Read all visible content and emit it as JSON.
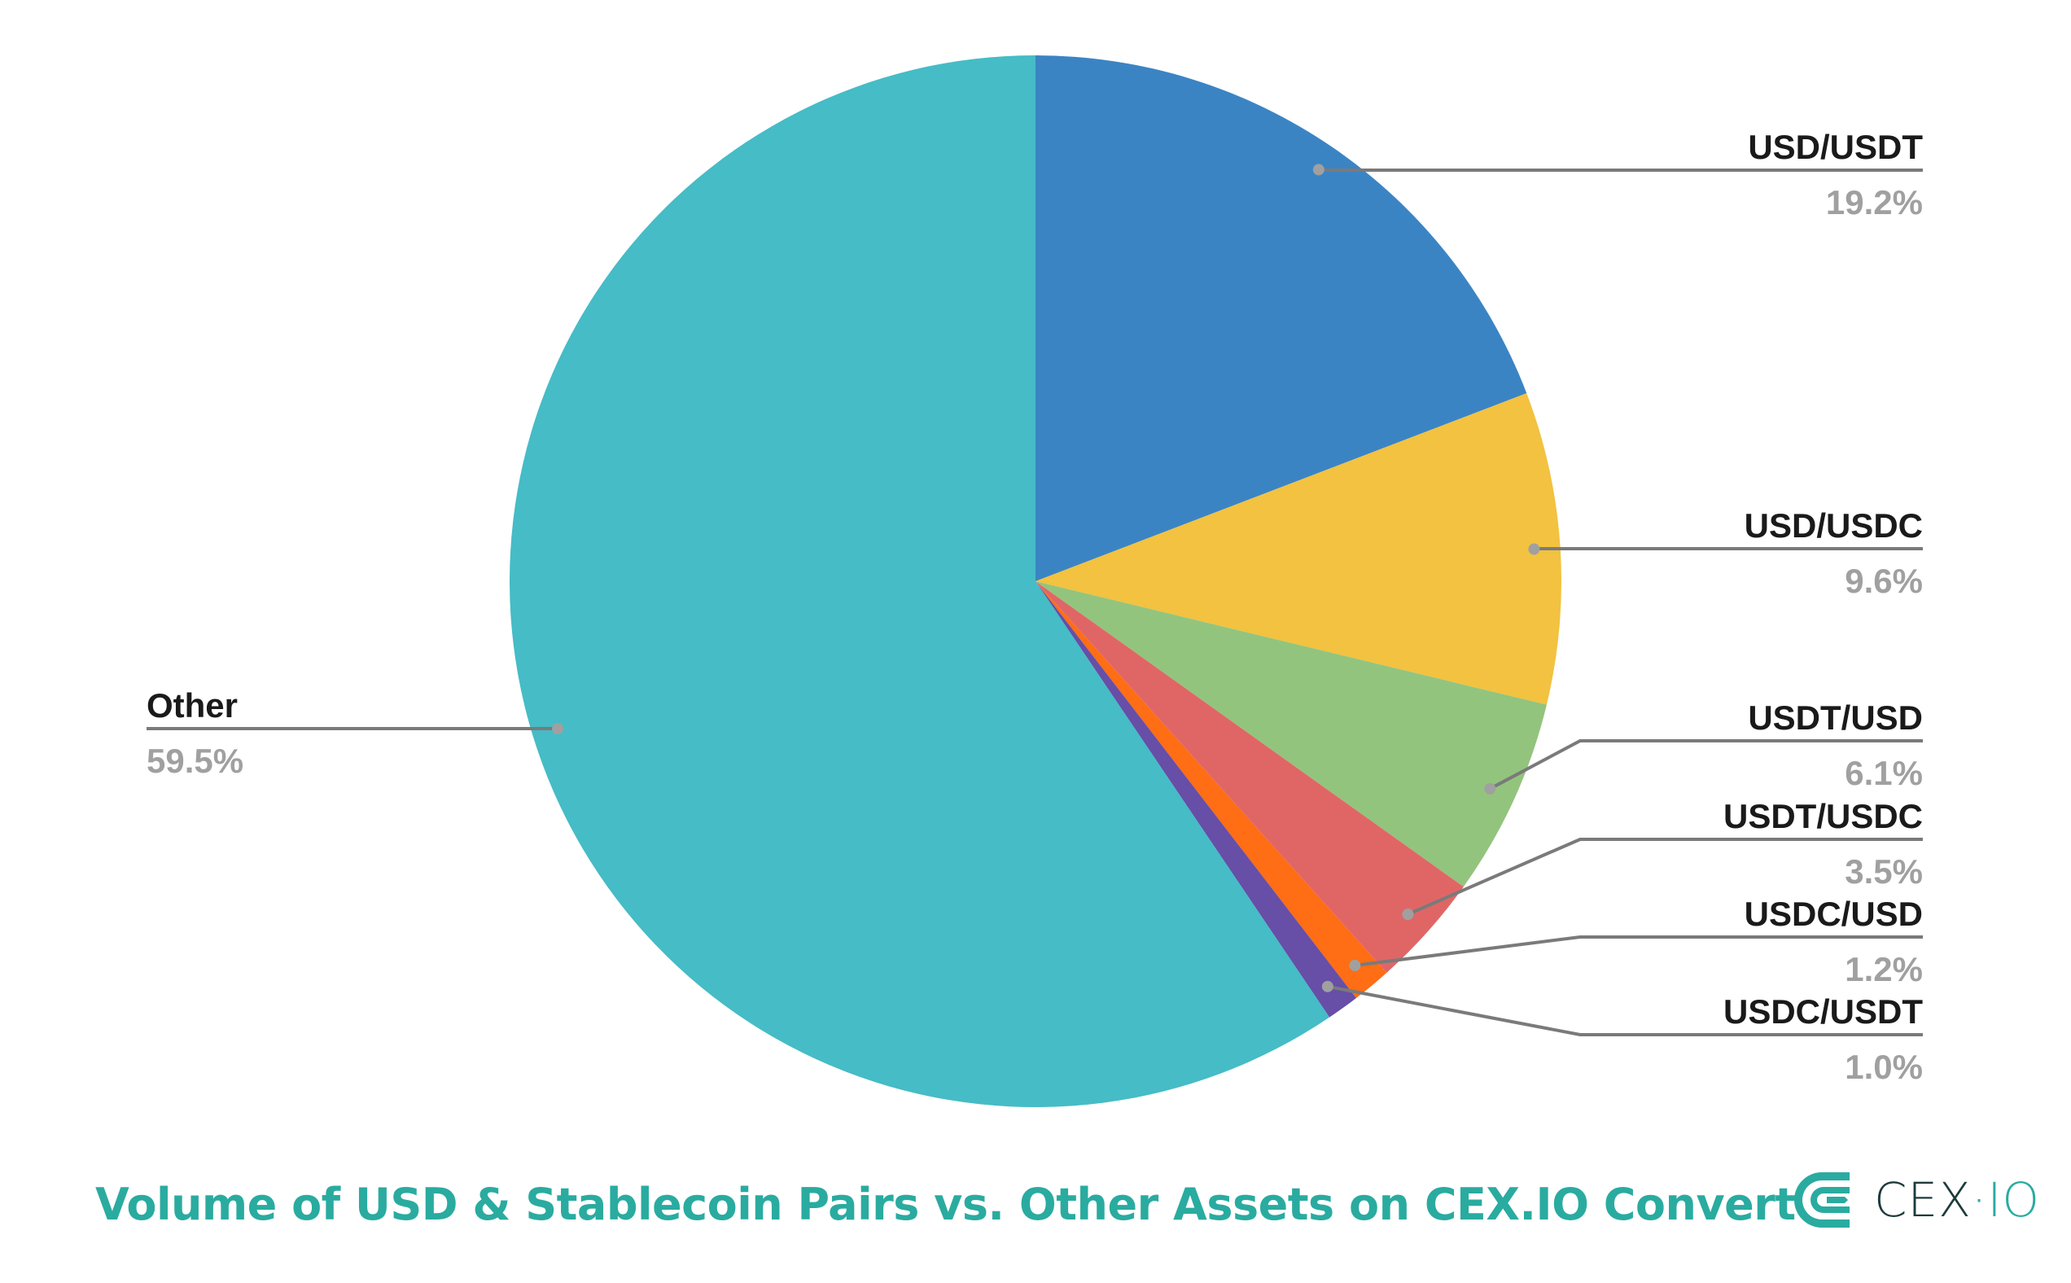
{
  "chart_data": {
    "type": "pie",
    "title": "Volume of USD & Stablecoin Pairs vs. Other Assets on CEX.IO Convert",
    "start_angle": "top",
    "direction": "clockwise",
    "slices": [
      {
        "label": "USD/USDT",
        "value": 19.2,
        "display": "19.2%",
        "color": "#3b84c4"
      },
      {
        "label": "USD/USDC",
        "value": 9.6,
        "display": "9.6%",
        "color": "#f2c240"
      },
      {
        "label": "USDT/USD",
        "value": 6.1,
        "display": "6.1%",
        "color": "#93c47d"
      },
      {
        "label": "USDT/USDC",
        "value": 3.5,
        "display": "3.5%",
        "color": "#e06666"
      },
      {
        "label": "USDC/USD",
        "value": 1.2,
        "display": "1.2%",
        "color": "#ff6d14"
      },
      {
        "label": "USDC/USDT",
        "value": 1.0,
        "display": "1.0%",
        "color": "#674ea7"
      },
      {
        "label": "Other",
        "value": 59.5,
        "display": "59.5%",
        "color": "#45bcc6"
      }
    ]
  },
  "logo": {
    "brand": "CEX",
    "dot": "·",
    "suffix": "IO",
    "color": "#2aaba0"
  }
}
